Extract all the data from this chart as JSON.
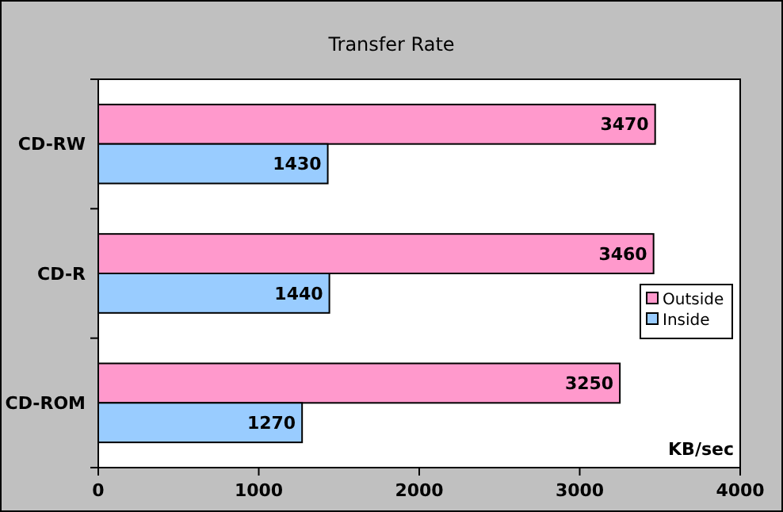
{
  "chart_data": {
    "type": "bar",
    "orientation": "horizontal",
    "title": "Transfer Rate",
    "xlabel": "KB/sec",
    "categories": [
      "CD-RW",
      "CD-R",
      "CD-ROM"
    ],
    "series": [
      {
        "name": "Outside",
        "color": "#ff99cc",
        "values": [
          3470,
          3460,
          3250
        ]
      },
      {
        "name": "Inside",
        "color": "#99ccff",
        "values": [
          1430,
          1440,
          1270
        ]
      }
    ],
    "xlim": [
      0,
      4000
    ],
    "xticks": [
      0,
      1000,
      2000,
      3000,
      4000
    ],
    "grid": false,
    "legend": "right",
    "data_labels": true
  }
}
